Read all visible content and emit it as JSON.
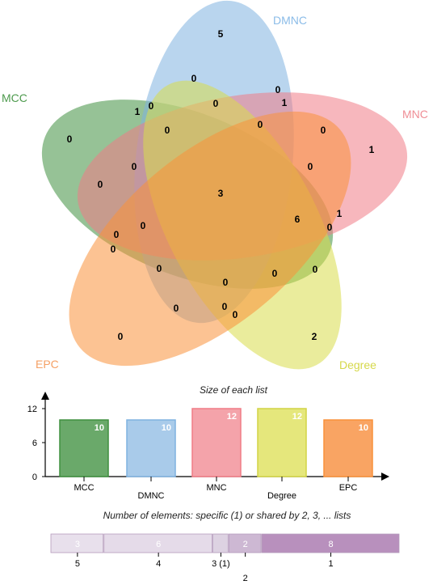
{
  "venn": {
    "sets": [
      {
        "name": "MCC",
        "color": "#3f8f3f",
        "label_color": "#4d9a4d"
      },
      {
        "name": "DMNC",
        "color": "#7fb2e0",
        "label_color": "#8bbce8"
      },
      {
        "name": "MNC",
        "color": "#f07c86",
        "label_color": "#ef8d95"
      },
      {
        "name": "Degree",
        "color": "#d9dc4a",
        "label_color": "#d6d84a"
      },
      {
        "name": "EPC",
        "color": "#f9913a",
        "label_color": "#f5a064"
      }
    ],
    "region_counts": [
      {
        "sets": "DMNC only",
        "value": "5"
      },
      {
        "sets": "MCC only",
        "value": "0"
      },
      {
        "sets": "MNC only",
        "value": "1"
      },
      {
        "sets": "Degree only",
        "value": "2"
      },
      {
        "sets": "EPC only",
        "value": "0"
      },
      {
        "sets": "all five",
        "value": "3"
      },
      {
        "sets": "four sets",
        "value": "6"
      },
      {
        "sets": "MCC-DMNC",
        "value": "1"
      },
      {
        "sets": "DMNC-MNC",
        "value": "1"
      },
      {
        "sets": "MNC-Degree",
        "value": "1"
      },
      {
        "sets": "region",
        "value": "0"
      },
      {
        "sets": "region",
        "value": "0"
      },
      {
        "sets": "region",
        "value": "0"
      },
      {
        "sets": "region",
        "value": "0"
      },
      {
        "sets": "region",
        "value": "0"
      },
      {
        "sets": "region",
        "value": "0"
      },
      {
        "sets": "region",
        "value": "0"
      },
      {
        "sets": "region",
        "value": "0"
      },
      {
        "sets": "region",
        "value": "0"
      },
      {
        "sets": "region",
        "value": "0"
      },
      {
        "sets": "region",
        "value": "0"
      },
      {
        "sets": "region",
        "value": "0"
      },
      {
        "sets": "region",
        "value": "0"
      },
      {
        "sets": "region",
        "value": "0"
      },
      {
        "sets": "region",
        "value": "0"
      },
      {
        "sets": "region",
        "value": "0"
      },
      {
        "sets": "region",
        "value": "0"
      },
      {
        "sets": "region",
        "value": "0"
      },
      {
        "sets": "region",
        "value": "0"
      },
      {
        "sets": "region",
        "value": "0"
      },
      {
        "sets": "region",
        "value": "0"
      }
    ]
  },
  "chart_data": [
    {
      "type": "bar",
      "title": "Size of each list",
      "categories": [
        "MCC",
        "DMNC",
        "MNC",
        "Degree",
        "EPC"
      ],
      "values": [
        10,
        10,
        12,
        12,
        10
      ],
      "value_labels": [
        "10",
        "10",
        "12",
        "12",
        "10"
      ],
      "colors": [
        "#6aa96a",
        "#a9cbea",
        "#f4a3aa",
        "#e5e77c",
        "#f9a463"
      ],
      "border_colors": [
        "#3f8f3f",
        "#7fb2e0",
        "#f07c86",
        "#d2d445",
        "#f9913a"
      ],
      "yticks": [
        "0",
        "6",
        "12"
      ],
      "ylim": [
        0,
        14
      ]
    },
    {
      "type": "bar",
      "orientation": "horizontal-stacked",
      "title": "Number of elements: specific (1) or shared by 2, 3, ... lists",
      "segments": [
        {
          "shared_by": "5",
          "value": 3,
          "label": "3",
          "color": "#e8e0ec"
        },
        {
          "shared_by": "4",
          "value": 6,
          "label": "6",
          "color": "#e5dbe9"
        },
        {
          "shared_by": "3 (1)",
          "value": 1,
          "label": "",
          "color": "#ddd2e2"
        },
        {
          "shared_by": "2",
          "value": 2,
          "label": "2",
          "color": "#cdb8d3"
        },
        {
          "shared_by": "1",
          "value": 8,
          "label": "8",
          "color": "#b890bd"
        }
      ]
    }
  ]
}
